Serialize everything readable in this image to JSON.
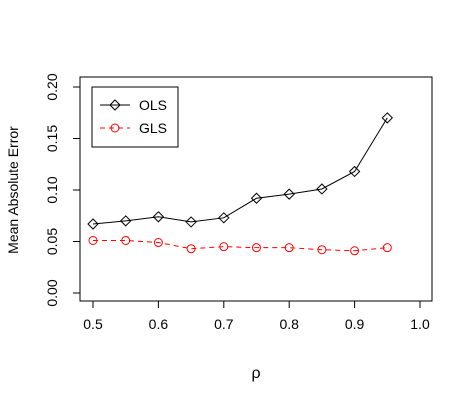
{
  "chart_data": {
    "type": "line",
    "title": "",
    "xlabel": "ρ",
    "ylabel": "Mean Absolute Error",
    "xlim": [
      0.5,
      1.0
    ],
    "ylim": [
      0.0,
      0.2
    ],
    "xticks": [
      "0.5",
      "0.6",
      "0.7",
      "0.8",
      "0.9",
      "1.0"
    ],
    "yticks": [
      "0.00",
      "0.05",
      "0.10",
      "0.15",
      "0.20"
    ],
    "grid": false,
    "legend_position": "top-left",
    "x": [
      0.5,
      0.55,
      0.6,
      0.65,
      0.7,
      0.75,
      0.8,
      0.85,
      0.9,
      0.95
    ],
    "series": [
      {
        "name": "OLS",
        "color": "#000000",
        "line": "solid",
        "marker": "diamond",
        "values": [
          0.067,
          0.07,
          0.074,
          0.069,
          0.073,
          0.092,
          0.096,
          0.101,
          0.118,
          0.17
        ]
      },
      {
        "name": "GLS",
        "color": "#ff0000",
        "line": "dashed",
        "marker": "circle",
        "values": [
          0.051,
          0.051,
          0.049,
          0.043,
          0.045,
          0.044,
          0.044,
          0.042,
          0.041,
          0.044
        ]
      }
    ]
  }
}
